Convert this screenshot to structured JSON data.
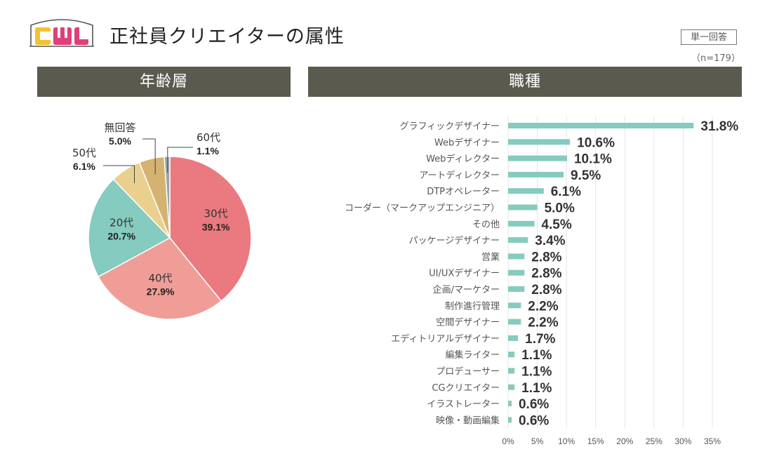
{
  "header": {
    "title": "正社員クリエイターの属性",
    "answer_type": "単一回答",
    "sample_size": "（n=179）"
  },
  "logo": {
    "text": "CWL",
    "colors": [
      "#f2c230",
      "#e03f7a",
      "#e03f7a"
    ]
  },
  "sections": {
    "age": "年齢層",
    "job": "職種"
  },
  "chart_data": [
    {
      "type": "pie",
      "title": "年齢層",
      "slices": [
        {
          "label": "30代",
          "value": 39.1,
          "pct": "39.1%",
          "color": "#ea7a80"
        },
        {
          "label": "40代",
          "value": 27.9,
          "pct": "27.9%",
          "color": "#f09d98"
        },
        {
          "label": "20代",
          "value": 20.7,
          "pct": "20.7%",
          "color": "#85cbbf"
        },
        {
          "label": "50代",
          "value": 6.1,
          "pct": "6.1%",
          "color": "#e9d08e"
        },
        {
          "label": "無回答",
          "value": 5.0,
          "pct": "5.0%",
          "color": "#d4b372"
        },
        {
          "label": "60代",
          "value": 1.1,
          "pct": "1.1%",
          "color": "#9aa6ad"
        }
      ]
    },
    {
      "type": "bar",
      "orientation": "horizontal",
      "title": "職種",
      "bar_color": "#85cbbf",
      "categories": [
        "グラフィックデザイナー",
        "Webデザイナー",
        "Webディレクター",
        "アートディレクター",
        "DTPオペレーター",
        "コーダー（マークアップエンジニア）",
        "その他",
        "パッケージデザイナー",
        "営業",
        "UI/UXデザイナー",
        "企画/マーケター",
        "制作進行管理",
        "空間デザイナー",
        "エディトリアルデザイナー",
        "編集ライター",
        "プロデューサー",
        "CGクリエイター",
        "イラストレーター",
        "映像・動画編集"
      ],
      "values": [
        31.8,
        10.6,
        10.1,
        9.5,
        6.1,
        5.0,
        4.5,
        3.4,
        2.8,
        2.8,
        2.8,
        2.2,
        2.2,
        1.7,
        1.1,
        1.1,
        1.1,
        0.6,
        0.6
      ],
      "labels": [
        "31.8%",
        "10.6%",
        "10.1%",
        "9.5%",
        "6.1%",
        "5.0%",
        "4.5%",
        "3.4%",
        "2.8%",
        "2.8%",
        "2.8%",
        "2.2%",
        "2.2%",
        "1.7%",
        "1.1%",
        "1.1%",
        "1.1%",
        "0.6%",
        "0.6%"
      ],
      "xlim": [
        0,
        35
      ],
      "xticks": [
        0,
        5,
        10,
        15,
        20,
        25,
        30,
        35
      ],
      "xtick_labels": [
        "0%",
        "5%",
        "10%",
        "15%",
        "20%",
        "25%",
        "30%",
        "35%"
      ],
      "grid": true
    }
  ]
}
